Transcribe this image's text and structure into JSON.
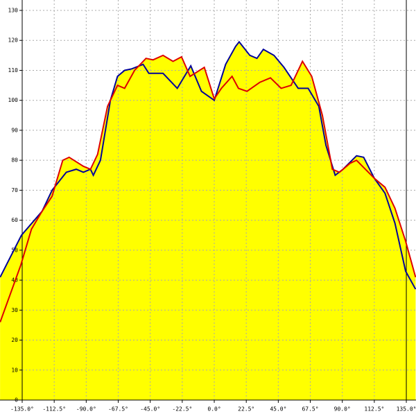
{
  "chart_data": {
    "type": "line",
    "fill": "#ffff00",
    "grid": true,
    "xlim": [
      -150.6,
      141.8
    ],
    "ylim": [
      0,
      130
    ],
    "xticks": [
      {
        "value": -135,
        "label": "-135.0°"
      },
      {
        "value": -112.5,
        "label": "-112.5°"
      },
      {
        "value": -90,
        "label": "-90.0°"
      },
      {
        "value": -67.5,
        "label": "-67.5°"
      },
      {
        "value": -45,
        "label": "-45.0°"
      },
      {
        "value": -22.5,
        "label": "-22.5°"
      },
      {
        "value": 0,
        "label": "0.0°"
      },
      {
        "value": 22.5,
        "label": "22.5°"
      },
      {
        "value": 45,
        "label": "45.0°"
      },
      {
        "value": 67.5,
        "label": "67.5°"
      },
      {
        "value": 90,
        "label": "90.0°"
      },
      {
        "value": 112.5,
        "label": "112.5°"
      },
      {
        "value": 135,
        "label": "135.0°"
      }
    ],
    "yticks": [
      0,
      10,
      20,
      30,
      40,
      50,
      60,
      70,
      80,
      90,
      100,
      110,
      120,
      130
    ],
    "series": [
      {
        "color": "#000099",
        "x": [
          -150.5,
          -135.5,
          -121,
          -114,
          -104,
          -97,
          -92,
          -87,
          -85,
          -80,
          -73,
          -68,
          -63,
          -58,
          -50,
          -46,
          -36,
          -26,
          -16.5,
          -9,
          0,
          8,
          15,
          17.5,
          25,
          30,
          34.5,
          42,
          49,
          59,
          66,
          73.5,
          78.5,
          85,
          90.5,
          100,
          105,
          112.5,
          120,
          127,
          134.5,
          141.5
        ],
        "values": [
          41,
          55,
          63,
          70,
          76,
          77,
          76,
          77,
          75,
          80,
          100,
          108,
          110,
          110.5,
          112,
          109,
          109,
          104,
          111.5,
          103,
          100,
          112,
          118,
          119.5,
          115,
          114,
          117,
          115,
          111,
          104,
          104,
          98,
          85,
          75,
          77,
          81.5,
          81,
          74,
          69,
          59,
          43,
          37
        ]
      },
      {
        "color": "#dd0000",
        "x": [
          -150.5,
          -136,
          -128.5,
          -121,
          -114,
          -106.5,
          -102,
          -92,
          -87,
          -82,
          -75,
          -68,
          -63,
          -56,
          -48,
          -43,
          -36,
          -29,
          -23,
          -17,
          -7,
          0,
          5,
          12.5,
          17,
          23,
          32,
          39.5,
          47,
          54,
          62,
          68.5,
          76,
          83,
          88,
          95.5,
          100,
          112.5,
          120,
          127,
          134.5,
          141.5
        ],
        "values": [
          26,
          45,
          57,
          63,
          68,
          80,
          81,
          78,
          77,
          82,
          98,
          105,
          104,
          110,
          114,
          113.5,
          115,
          113,
          114.5,
          108,
          111,
          100.5,
          104,
          108,
          104,
          103,
          106,
          107.5,
          104,
          105,
          113,
          108,
          95,
          77,
          76,
          79,
          80,
          74,
          71,
          64,
          53,
          41
        ]
      }
    ]
  }
}
